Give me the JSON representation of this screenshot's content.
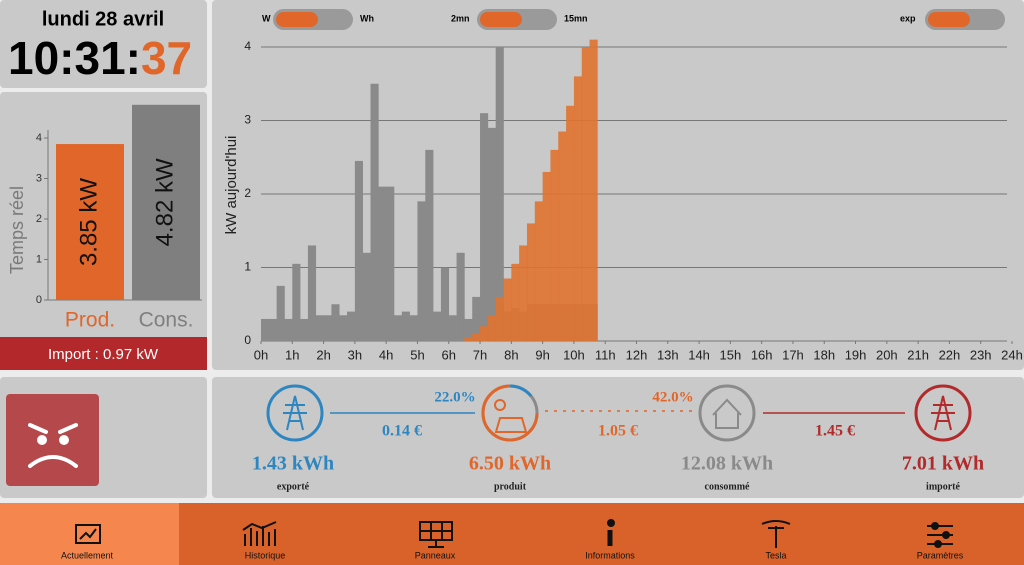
{
  "clock": {
    "date": "lundi 28 avril",
    "time": "10:31:",
    "seconds": "37"
  },
  "chart_data": [
    {
      "type": "bar",
      "ylabel": "Temps réel",
      "categories": [
        "Prod.",
        "Cons."
      ],
      "values": [
        3.85,
        4.82
      ],
      "value_labels": [
        "3.85 kW",
        "4.82 kW"
      ],
      "colors": [
        "#e0662a",
        "#7f7f7f"
      ],
      "ylim": [
        0,
        5
      ],
      "yticks": [
        0,
        1,
        2,
        3,
        4
      ],
      "footer": "Import : 0.97 kW"
    },
    {
      "type": "bar",
      "ylabel": "kW aujourd'hui",
      "grid": true,
      "controls": [
        {
          "left": "W",
          "right": "Wh"
        },
        {
          "left": "2mn",
          "right": "15mn"
        },
        {
          "left": "exp"
        }
      ],
      "xlim": [
        0,
        24
      ],
      "ylim": [
        0,
        4.15
      ],
      "yticks": [
        0,
        1,
        2,
        3,
        4
      ],
      "xticks": [
        {
          "value": 0,
          "label": "0h"
        },
        {
          "value": 1,
          "label": "1h"
        },
        {
          "value": 2,
          "label": "2h"
        },
        {
          "value": 3,
          "label": "3h"
        },
        {
          "value": 4,
          "label": "4h"
        },
        {
          "value": 5,
          "label": "5h"
        },
        {
          "value": 6,
          "label": "6h"
        },
        {
          "value": 7,
          "label": "7h"
        },
        {
          "value": 8,
          "label": "8h"
        },
        {
          "value": 9,
          "label": "9h"
        },
        {
          "value": 10,
          "label": "10h"
        },
        {
          "value": 11,
          "label": "11h"
        },
        {
          "value": 12,
          "label": "12h"
        },
        {
          "value": 13,
          "label": "13h"
        },
        {
          "value": 14,
          "label": "14h"
        },
        {
          "value": 15,
          "label": "15h"
        },
        {
          "value": 16,
          "label": "16h"
        },
        {
          "value": 17,
          "label": "17h"
        },
        {
          "value": 18,
          "label": "18h"
        },
        {
          "value": 19,
          "label": "19h"
        },
        {
          "value": 20,
          "label": "20h"
        },
        {
          "value": 21,
          "label": "21h"
        },
        {
          "value": 22,
          "label": "22h"
        },
        {
          "value": 23,
          "label": "23h"
        },
        {
          "value": 24,
          "label": "24h"
        }
      ],
      "x": [
        0,
        0.25,
        0.5,
        0.75,
        1,
        1.25,
        1.5,
        1.75,
        2,
        2.25,
        2.5,
        2.75,
        3,
        3.25,
        3.5,
        3.75,
        4,
        4.25,
        4.5,
        4.75,
        5,
        5.25,
        5.5,
        5.75,
        6,
        6.25,
        6.5,
        6.75,
        7,
        7.25,
        7.5,
        7.75,
        8,
        8.25,
        8.5,
        8.75,
        9,
        9.25,
        9.5,
        9.75,
        10,
        10.25,
        10.5
      ],
      "series": [
        {
          "color": "#8a8a8a",
          "values": [
            0.3,
            0.3,
            0.75,
            0.3,
            1.05,
            0.3,
            1.3,
            0.35,
            0.35,
            0.5,
            0.35,
            0.4,
            2.45,
            1.2,
            3.5,
            2.1,
            2.1,
            0.35,
            0.4,
            0.35,
            1.9,
            2.6,
            0.4,
            1.0,
            0.35,
            1.2,
            0.3,
            0.6,
            3.1,
            2.9,
            4.0,
            0.4,
            0.45,
            0.4,
            0.5,
            0.5,
            0.5,
            0.5,
            0.5,
            0.5,
            0.5,
            0.5,
            0.5
          ]
        },
        {
          "color": "#e0722f",
          "values": [
            0,
            0,
            0,
            0,
            0,
            0,
            0,
            0,
            0,
            0,
            0,
            0,
            0,
            0,
            0,
            0,
            0,
            0,
            0,
            0,
            0,
            0,
            0,
            0,
            0,
            0,
            0.05,
            0.1,
            0.2,
            0.35,
            0.6,
            0.85,
            1.05,
            1.3,
            1.6,
            1.9,
            2.3,
            2.6,
            2.85,
            3.2,
            3.6,
            4.0,
            4.1
          ]
        }
      ]
    }
  ],
  "energy_flow": {
    "nodes": [
      {
        "value": "1.43 kWh",
        "label": "exporté",
        "color": "#2e86c1"
      },
      {
        "value": "6.50 kWh",
        "label": "produit",
        "color": "#e0662a"
      },
      {
        "value": "12.08 kWh",
        "label": "consommé",
        "color": "#8a8a8a"
      },
      {
        "value": "7.01 kWh",
        "label": "importé",
        "color": "#b22a2a"
      }
    ],
    "links": [
      {
        "percent": "22.0%",
        "cost": "0.14 €",
        "color": "#2e86c1"
      },
      {
        "percent": "42.0%",
        "cost": "1.05 €",
        "color": "#e0662a"
      },
      {
        "cost": "1.45 €",
        "color": "#b22a2a"
      }
    ]
  },
  "nav": [
    "Actuellement",
    "Historique",
    "Panneaux",
    "Informations",
    "Tesla",
    "Paramètres"
  ]
}
